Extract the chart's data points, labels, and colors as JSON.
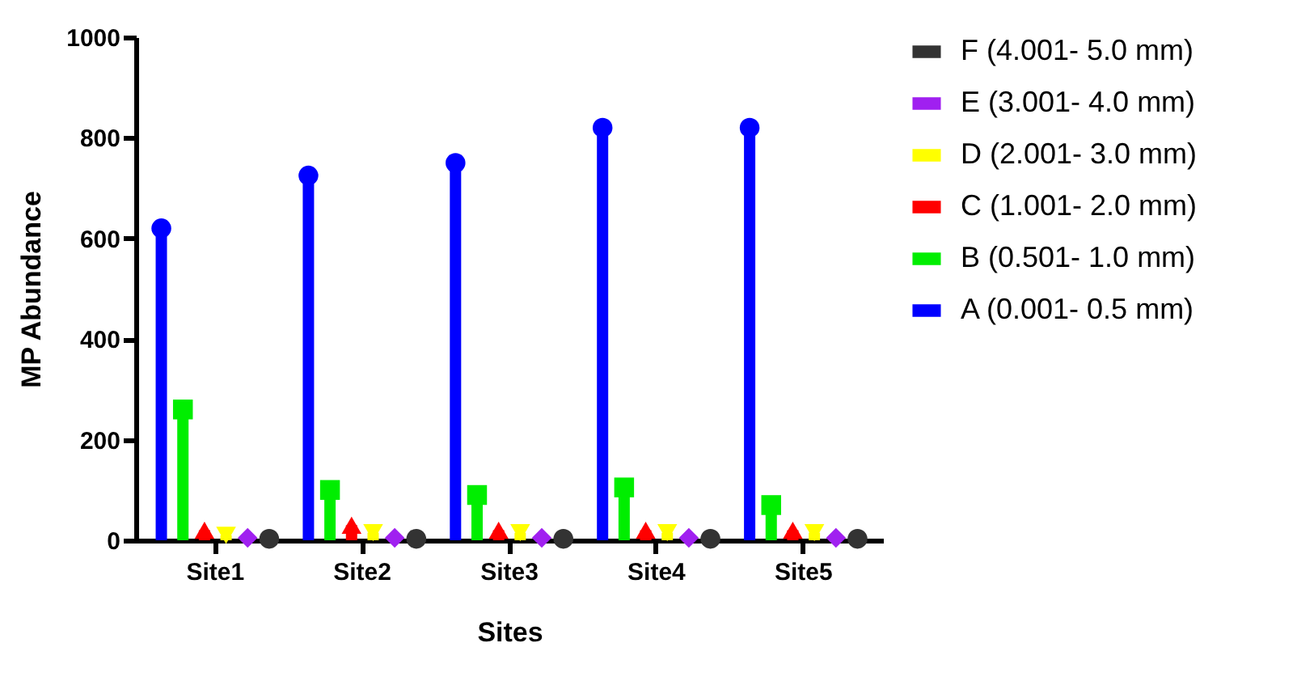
{
  "chart_data": {
    "type": "lollipop",
    "xlabel": "Sites",
    "ylabel": "MP Abundance",
    "categories": [
      "Site1",
      "Site2",
      "Site3",
      "Site4",
      "Site5"
    ],
    "series": [
      {
        "name": "A (0.001- 0.5 mm)",
        "color": "#0000ff",
        "marker": "circle",
        "values": [
          620,
          725,
          750,
          820,
          820
        ]
      },
      {
        "name": "B (0.501- 1.0 mm)",
        "color": "#00ee00",
        "marker": "square",
        "values": [
          260,
          100,
          90,
          105,
          70
        ]
      },
      {
        "name": "C (1.001- 2.0 mm)",
        "color": "#ff0000",
        "marker": "triangle",
        "values": [
          20,
          30,
          20,
          20,
          20
        ]
      },
      {
        "name": "D (2.001- 3.0 mm)",
        "color": "#ffff00",
        "marker": "triangle-down",
        "values": [
          10,
          15,
          15,
          15,
          15
        ]
      },
      {
        "name": "E (3.001- 4.0 mm)",
        "color": "#a020f0",
        "marker": "diamond",
        "values": [
          5,
          5,
          5,
          5,
          5
        ]
      },
      {
        "name": "F (4.001- 5.0 mm)",
        "color": "#333333",
        "marker": "circle",
        "values": [
          3,
          3,
          3,
          3,
          3
        ]
      }
    ],
    "ylim": [
      0,
      1000
    ],
    "yticks": [
      0,
      200,
      400,
      600,
      800,
      1000
    ],
    "grid": false,
    "legend": "right"
  }
}
